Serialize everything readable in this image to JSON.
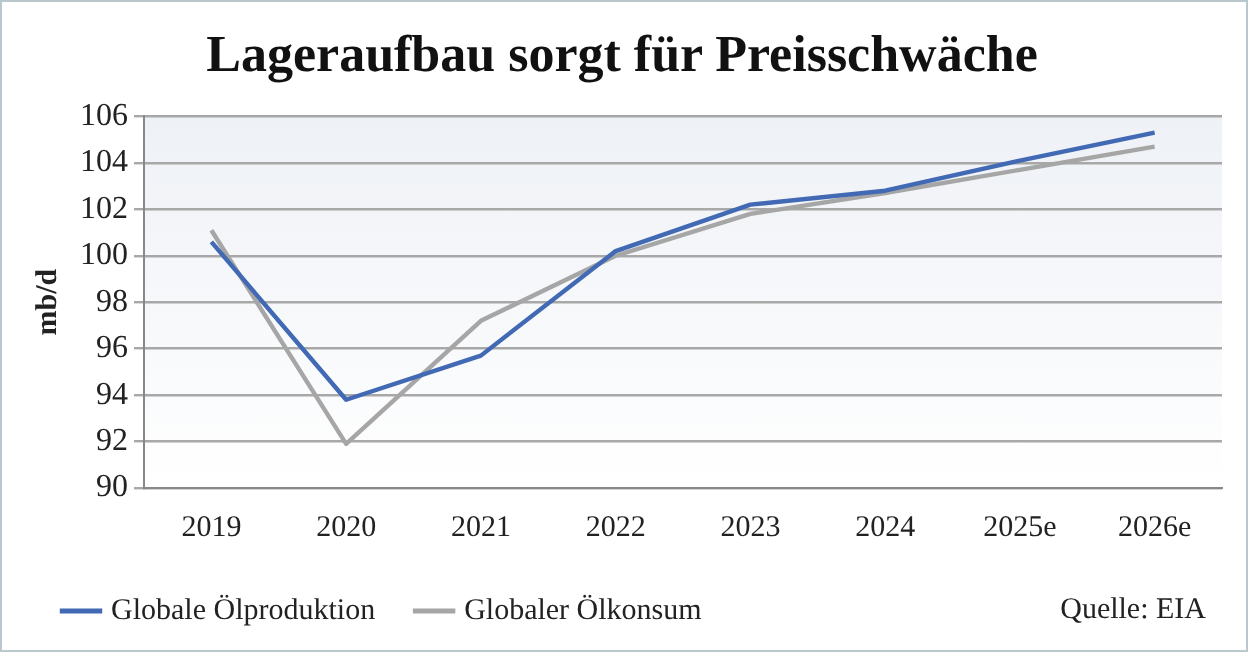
{
  "chart_data": {
    "type": "line",
    "title": "Lageraufbau sorgt für Preisschwäche",
    "ylabel": "mb/d",
    "categories": [
      "2019",
      "2020",
      "2021",
      "2022",
      "2023",
      "2024",
      "2025e",
      "2026e"
    ],
    "series": [
      {
        "name": "Globale Ölproduktion",
        "color": "#4169b4",
        "values": [
          100.6,
          93.8,
          95.7,
          100.2,
          102.2,
          102.8,
          104.1,
          105.3
        ]
      },
      {
        "name": "Globaler Ölkonsum",
        "color": "#a6a6a6",
        "values": [
          101.1,
          91.9,
          97.2,
          100.0,
          101.8,
          102.7,
          103.7,
          104.7
        ]
      }
    ],
    "ylim": [
      90,
      106
    ],
    "yticks": [
      90,
      92,
      94,
      96,
      98,
      100,
      102,
      104,
      106
    ],
    "grid": "y",
    "legend": "bottom",
    "marker": "none",
    "line_style": "solid",
    "annotations": [
      "Quelle: EIA"
    ]
  }
}
